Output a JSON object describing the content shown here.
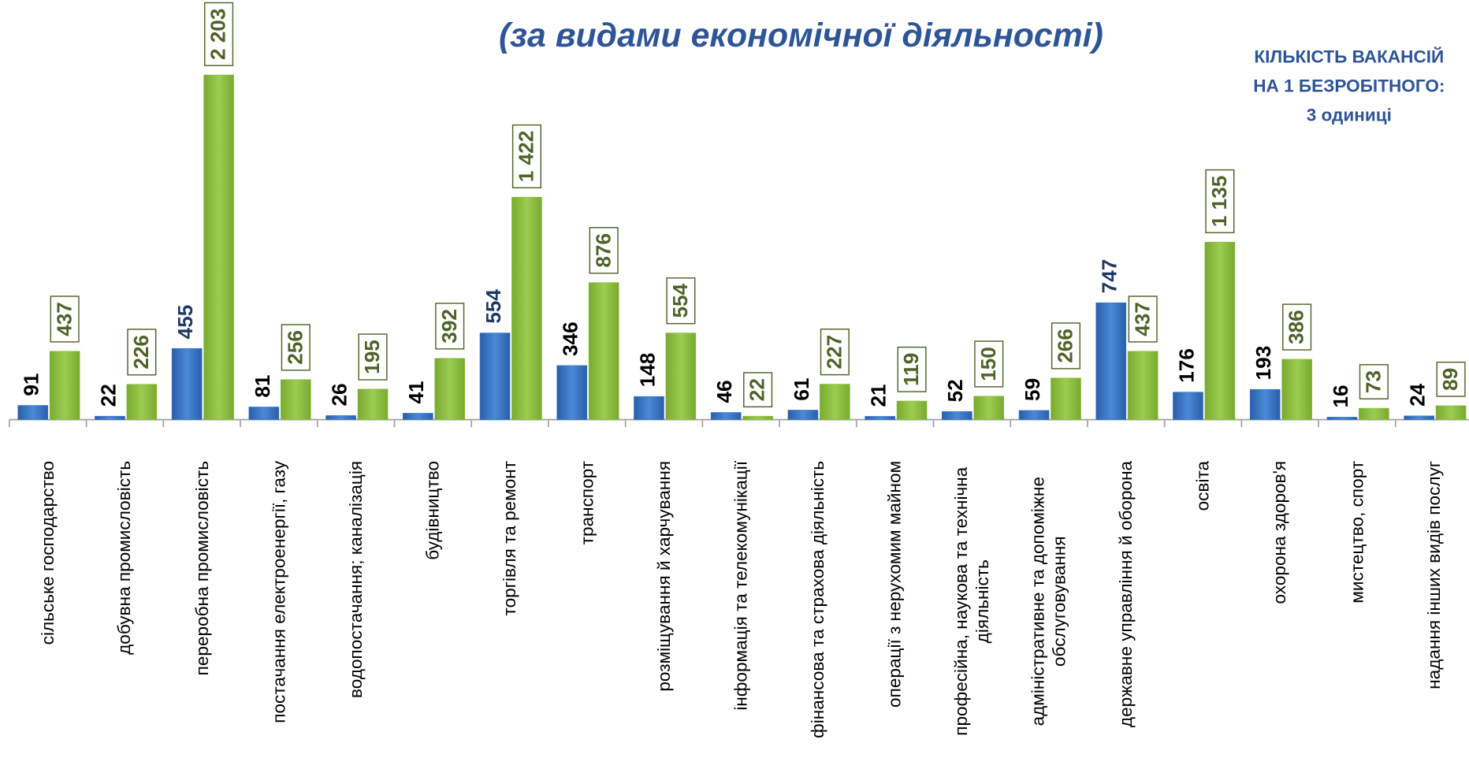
{
  "chart_data": {
    "type": "bar",
    "title": "(за видами економічної діяльності)",
    "annotation": [
      "КІЛЬКІСТЬ ВАКАНСІЙ",
      "НА 1 БЕЗРОБІТНОГО:",
      "3 одиниці"
    ],
    "categories": [
      "сільське господарство",
      "добувна промисловість",
      "переробна промисловість",
      "постачання електроенергії, газу",
      "водопостачання; каналізація",
      "будівництво",
      "торгівля та ремонт",
      "транспорт",
      "розміщування й харчування",
      "інформація та телекомунікації",
      "фінансова та страхова діяльність",
      "операції з нерухомим майном",
      "професійна, наукова та технічна діяльність",
      "адміністративне та допоміжне обслуговування",
      "державне управління й оборона",
      "освіта",
      "охорона здоров'я",
      "мистецтво, спорт",
      "надання інших видів послуг"
    ],
    "series": [
      {
        "color": "#3a78c9",
        "values": [
          91,
          22,
          455,
          81,
          26,
          41,
          554,
          346,
          148,
          46,
          61,
          21,
          52,
          59,
          747,
          176,
          193,
          16,
          24
        ],
        "label_colors": [
          "#000000",
          "#000000",
          "#1f3864",
          "#000000",
          "#000000",
          "#000000",
          "#1f3864",
          "#000000",
          "#000000",
          "#000000",
          "#000000",
          "#000000",
          "#000000",
          "#000000",
          "#1f3864",
          "#000000",
          "#000000",
          "#000000",
          "#000000"
        ]
      },
      {
        "color": "#8cbf3f",
        "values": [
          437,
          226,
          2203,
          256,
          195,
          392,
          1422,
          876,
          554,
          22,
          227,
          119,
          150,
          266,
          437,
          1135,
          386,
          73,
          89
        ],
        "value_labels": [
          "437",
          "226",
          "2 203",
          "256",
          "195",
          "392",
          "1 422",
          "876",
          "554",
          "22",
          "227",
          "119",
          "150",
          "266",
          "437",
          "1 135",
          "386",
          "73",
          "89"
        ],
        "label_color": "#4f6228"
      }
    ]
  }
}
